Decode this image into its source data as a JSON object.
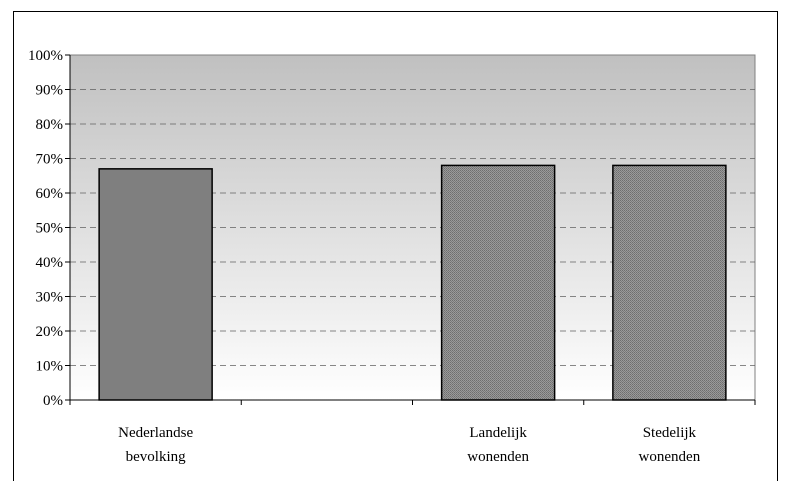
{
  "chart_data": {
    "type": "bar",
    "title": "",
    "xlabel": "",
    "ylabel": "",
    "ylim": [
      0,
      100
    ],
    "y_unit": "%",
    "y_ticks": [
      "0%",
      "10%",
      "20%",
      "30%",
      "40%",
      "50%",
      "60%",
      "70%",
      "80%",
      "90%",
      "100%"
    ],
    "grid": "horizontal dashed",
    "categories": [
      [
        "Nederlandse",
        "bevolking"
      ],
      [
        "",
        ""
      ],
      [
        "Landelijk",
        "wonenden"
      ],
      [
        "Stedelijk",
        "wonenden"
      ]
    ],
    "values": [
      67,
      null,
      68,
      68
    ],
    "colors": {
      "solid_bar": "#7f7f7f",
      "hatched_bar": "#8c8c8c",
      "plot_bg_top": "#c0c0c0",
      "plot_bg_bottom": "#ffffff"
    }
  }
}
